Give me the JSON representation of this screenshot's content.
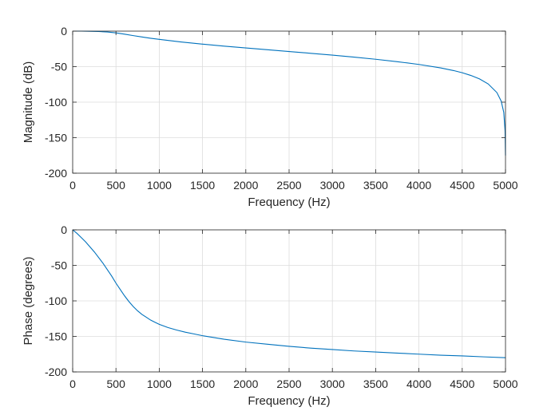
{
  "colors": {
    "line": "#0072BD",
    "grid": "#dcdcdc",
    "axes": "#262626",
    "background": "#ffffff"
  },
  "chart_data": [
    {
      "type": "line",
      "xlabel": "Frequency (Hz)",
      "ylabel": "Magnitude (dB)",
      "xlim": [
        0,
        5000
      ],
      "ylim": [
        -200,
        0
      ],
      "xticks": [
        0,
        500,
        1000,
        1500,
        2000,
        2500,
        3000,
        3500,
        4000,
        4500,
        5000
      ],
      "yticks": [
        -200,
        -150,
        -100,
        -50,
        0
      ],
      "grid": true,
      "series": [
        {
          "x": [
            0,
            100,
            200,
            300,
            400,
            500,
            600,
            700,
            800,
            900,
            1000,
            1250,
            1500,
            1750,
            2000,
            2250,
            2500,
            2750,
            3000,
            3250,
            3500,
            3750,
            4000,
            4250,
            4400,
            4500,
            4600,
            4700,
            4800,
            4900,
            4950,
            4980,
            4995,
            5000
          ],
          "y": [
            0,
            0,
            -0.2,
            -0.5,
            -1.2,
            -2.5,
            -4.3,
            -6.3,
            -8.2,
            -10,
            -11.6,
            -15.2,
            -18.3,
            -21.1,
            -23.7,
            -26.2,
            -28.7,
            -31.2,
            -33.8,
            -36.6,
            -39.6,
            -43,
            -46.9,
            -51.8,
            -55.5,
            -58.6,
            -62.4,
            -67.3,
            -74.3,
            -86.4,
            -98.4,
            -114.3,
            -140.2,
            -175
          ]
        }
      ]
    },
    {
      "type": "line",
      "xlabel": "Frequency (Hz)",
      "ylabel": "Phase (degrees)",
      "xlim": [
        0,
        5000
      ],
      "ylim": [
        -200,
        0
      ],
      "xticks": [
        0,
        500,
        1000,
        1500,
        2000,
        2500,
        3000,
        3500,
        4000,
        4500,
        5000
      ],
      "yticks": [
        -200,
        -150,
        -100,
        -50,
        0
      ],
      "grid": true,
      "series": [
        {
          "x": [
            0,
            50,
            100,
            150,
            200,
            250,
            300,
            350,
            400,
            450,
            500,
            550,
            600,
            650,
            700,
            750,
            800,
            850,
            900,
            950,
            1000,
            1100,
            1200,
            1300,
            1400,
            1500,
            1750,
            2000,
            2250,
            2500,
            2750,
            3000,
            3250,
            3500,
            3750,
            4000,
            4250,
            4500,
            4750,
            5000
          ],
          "y": [
            0,
            -5,
            -11,
            -17,
            -24,
            -31,
            -39,
            -47,
            -56,
            -65,
            -75,
            -84,
            -93,
            -101,
            -108,
            -114,
            -119,
            -123,
            -127,
            -130,
            -133,
            -137.5,
            -141,
            -144,
            -146.5,
            -149,
            -154,
            -158,
            -161,
            -164,
            -166.5,
            -168.5,
            -170.5,
            -172,
            -173.5,
            -175,
            -176.5,
            -177.5,
            -178.8,
            -180
          ]
        }
      ]
    }
  ]
}
